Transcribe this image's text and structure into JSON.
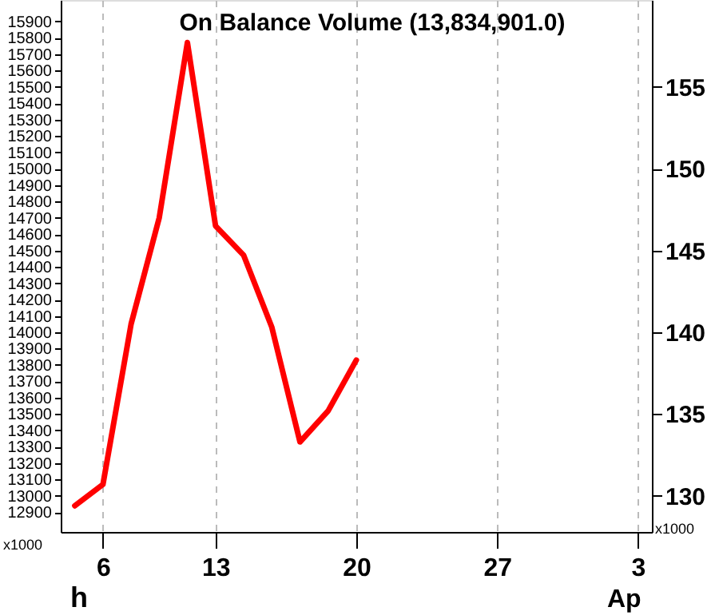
{
  "chart_data": {
    "type": "line",
    "title": "On Balance Volume (13,834,901.0)",
    "categories": [
      null,
      "6",
      null,
      null,
      null,
      "13",
      null,
      null,
      null,
      null,
      "20",
      null,
      null,
      null,
      null,
      "27",
      null,
      null,
      null,
      null,
      "3"
    ],
    "series": [
      {
        "color": "#ff0000",
        "values": [
          12940,
          13070,
          14050,
          14700,
          15770,
          14650,
          14470,
          14030,
          13330,
          13520,
          13830,
          null,
          null,
          null,
          null,
          null,
          null,
          null,
          null,
          null,
          null
        ]
      }
    ],
    "ylim": [
      12780,
      16030
    ],
    "yticks": [
      12900,
      13000,
      13100,
      13200,
      13300,
      13400,
      13500,
      13600,
      13700,
      13800,
      13900,
      14000,
      14100,
      14200,
      14300,
      14400,
      14500,
      14600,
      14700,
      14800,
      14900,
      15000,
      15100,
      15200,
      15300,
      15400,
      15500,
      15600,
      15700,
      15800,
      15900
    ],
    "y2lim": [
      127.8,
      160.3
    ],
    "y2ticks": [
      130,
      135,
      140,
      145,
      150,
      155
    ],
    "annotations": [
      "h",
      "Ap",
      "x1000",
      "x1000"
    ],
    "grid": "x",
    "marker": "none",
    "line_style": "solid"
  }
}
